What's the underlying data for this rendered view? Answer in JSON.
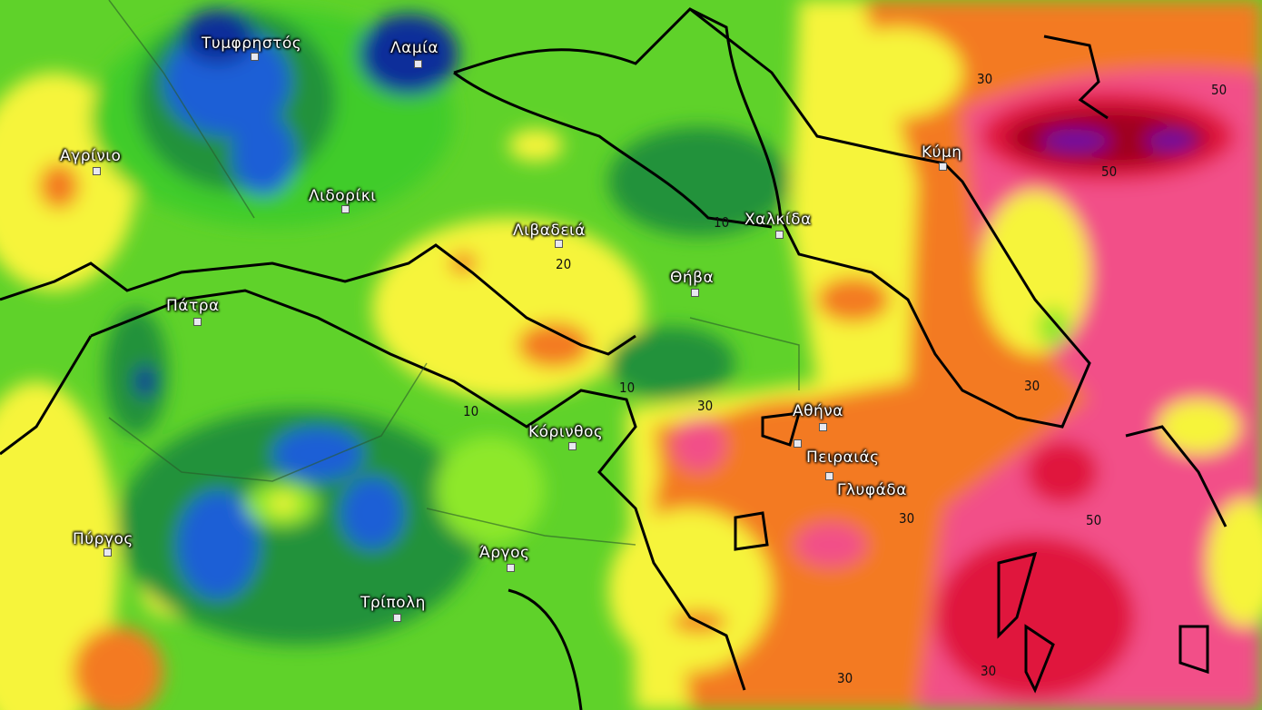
{
  "map": {
    "colors": {
      "lime": "#8ee82c",
      "green": "#3fcc2a",
      "dark_green": "#23923a",
      "forest": "#1a7a30",
      "blue": "#1f5fd6",
      "navy": "#0c2f9a",
      "yellow": "#f6f43a",
      "light_orange": "#f8b038",
      "orange": "#f37a22",
      "salmon": "#f79070",
      "pink": "#f25088",
      "red": "#e0143c",
      "dark_red": "#a0001c",
      "purple": "#6a10a8",
      "coastline": "#000000"
    },
    "cities": [
      {
        "name": "Τυμφρηστός"
      },
      {
        "name": "Λαμία"
      },
      {
        "name": "Αγρίνιο"
      },
      {
        "name": "Λιδορίκι"
      },
      {
        "name": "Λιβαδειά"
      },
      {
        "name": "Θήβα"
      },
      {
        "name": "Χαλκίδα"
      },
      {
        "name": "Κύμη"
      },
      {
        "name": "Πάτρα"
      },
      {
        "name": "Αθήνα"
      },
      {
        "name": "Πειραιάς"
      },
      {
        "name": "Γλυφάδα"
      },
      {
        "name": "Κόρινθος"
      },
      {
        "name": "Πύργος"
      },
      {
        "name": "Άργος"
      },
      {
        "name": "Τρίπολη"
      }
    ],
    "contour_labels": [
      "30",
      "50",
      "50",
      "10",
      "20",
      "10",
      "10",
      "30",
      "30",
      "30",
      "50",
      "30",
      "30"
    ]
  }
}
